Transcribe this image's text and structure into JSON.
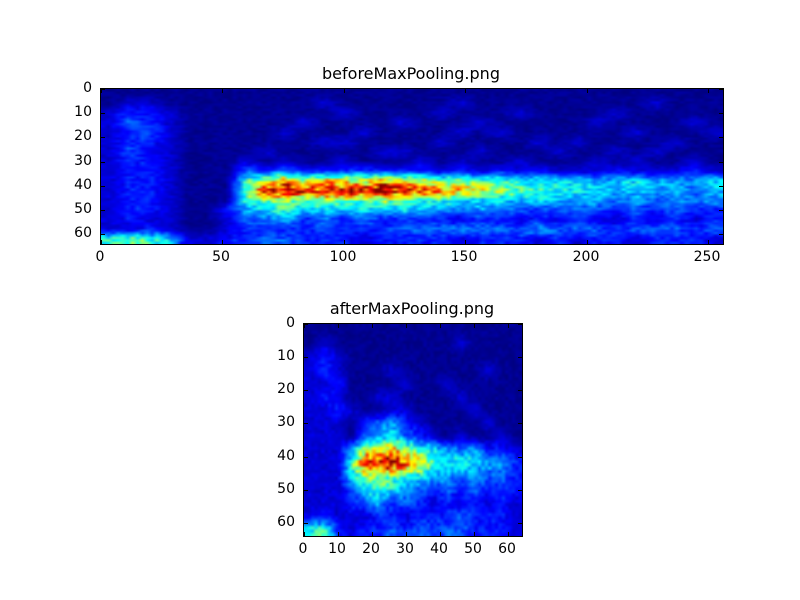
{
  "colors": {
    "background": "#ffffff",
    "axes_line": "#000000",
    "text": "#000000",
    "colormap_low": "#000080",
    "colormap_high": "#800000"
  },
  "chart_data": [
    {
      "type": "heatmap",
      "title": "beforeMaxPooling.png",
      "xlabel": "",
      "ylabel": "",
      "xlim": [
        0,
        256
      ],
      "ylim": [
        64,
        0
      ],
      "y_inverted": true,
      "xticks": [
        0,
        50,
        100,
        150,
        200,
        250
      ],
      "yticks": [
        0,
        10,
        20,
        30,
        40,
        50,
        60
      ],
      "grid": false,
      "legend": null,
      "colormap": "jet",
      "grid_cols": 32,
      "grid_rows": 16,
      "cell_units_x": 8,
      "cell_units_y": 4,
      "value_encoding": "hex digit 0-f per cell, 0=colormap min, f=colormap max",
      "values": [
        "00000000000000000000000000000000",
        "01100000000100000010000000001000",
        "12210000000010000100010000100000",
        "13210000001000010001000001000010",
        "12310000010001000010100000010001",
        "12210000000110000100001010000100",
        "13110000100000110001000100101000",
        "12210001010010001010010001010010",
        "12210003232223222121212111211121",
        "122100069b8a98b99776655554454445",
        "12210007dedcdeedcba9876655454434",
        "12210006786876866655545444343434",
        "12210024564545454434332333232322",
        "12110013342323222212212121121212",
        "11210012222322233343334333233323",
        "67651122332221222212221212212221"
      ],
      "description": "64-row spectrogram-like activation map: bright red/yellow horizontal band near row 40 from col 60 to 135 fading to green/cyan then faint blue toward col 256; cyan streak at bottom-left rows ~60-63; faint speckled dark-blue background with lighter block at cols 0-30"
    },
    {
      "type": "heatmap",
      "title": "afterMaxPooling.png",
      "xlabel": "",
      "ylabel": "",
      "xlim": [
        0,
        64
      ],
      "ylim": [
        64,
        0
      ],
      "y_inverted": true,
      "xticks": [
        0,
        10,
        20,
        30,
        40,
        50,
        60
      ],
      "yticks": [
        0,
        10,
        20,
        30,
        40,
        50,
        60
      ],
      "grid": false,
      "legend": null,
      "colormap": "jet",
      "grid_cols": 16,
      "grid_rows": 16,
      "cell_units_x": 4,
      "cell_units_y": 4,
      "value_encoding": "hex digit 0-f per cell, 0=colormap min, f=colormap max",
      "values": [
        "0000000000000000",
        "0100000000010000",
        "1210000000000000",
        "1210001000000100",
        "1120000100100000",
        "1210011000010000",
        "1121001100001000",
        "1110234210000100",
        "1110345321010010",
        "111489a865434221",
        "1116ddeca6565442",
        "1115787654434332",
        "1113565432323222",
        "1112342321212121",
        "1211122122232221",
        "6621223232332221"
      ],
      "description": "64x64 max-pooled map: red/yellow band near row 40 from col 15 to 33 with cyan tail to right edge; cyan speckle cloud below band; cyan streak bottom-left rows ~60-63"
    }
  ]
}
